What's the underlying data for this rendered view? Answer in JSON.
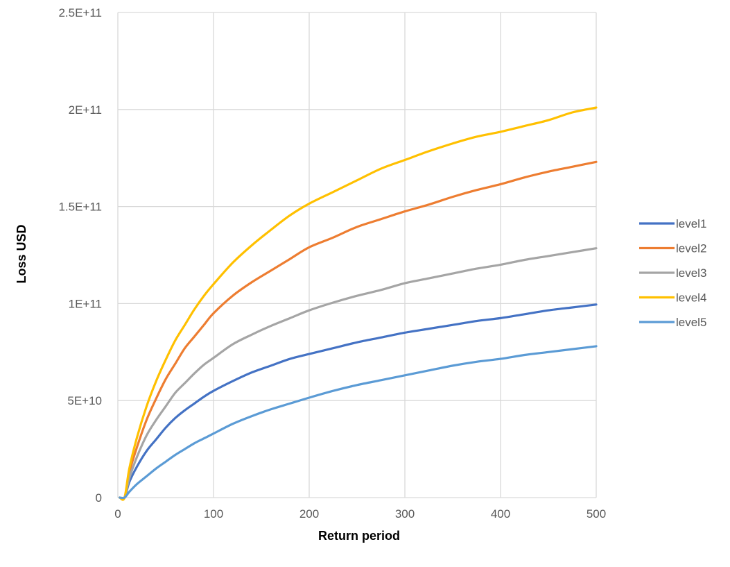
{
  "chart_data": {
    "type": "line",
    "title": "",
    "xlabel": "Return period",
    "ylabel": "Loss USD",
    "xlim": [
      0,
      500
    ],
    "ylim": [
      0,
      250000000000
    ],
    "x_ticks": [
      0,
      100,
      200,
      300,
      400,
      500
    ],
    "x_tick_labels": [
      "0",
      "100",
      "200",
      "300",
      "400",
      "500"
    ],
    "y_ticks": [
      0,
      50000000000,
      100000000000,
      150000000000,
      200000000000,
      250000000000
    ],
    "y_tick_labels": [
      "0",
      "5E+10",
      "1E+11",
      "1.5E+11",
      "2E+11",
      "2.5E+11"
    ],
    "grid": true,
    "legend_position": "right",
    "series": [
      {
        "name": "level1",
        "color": "#4472C4",
        "points": [
          [
            2,
            0
          ],
          [
            7,
            0
          ],
          [
            12,
            8000000000
          ],
          [
            20,
            16000000000
          ],
          [
            30,
            24000000000
          ],
          [
            40,
            30000000000
          ],
          [
            50,
            36000000000
          ],
          [
            60,
            41000000000
          ],
          [
            70,
            45000000000
          ],
          [
            80,
            48500000000
          ],
          [
            90,
            52000000000
          ],
          [
            100,
            55000000000
          ],
          [
            120,
            60000000000
          ],
          [
            140,
            64500000000
          ],
          [
            160,
            68000000000
          ],
          [
            180,
            71500000000
          ],
          [
            200,
            74000000000
          ],
          [
            225,
            77000000000
          ],
          [
            250,
            80000000000
          ],
          [
            275,
            82500000000
          ],
          [
            300,
            85000000000
          ],
          [
            325,
            87000000000
          ],
          [
            350,
            89000000000
          ],
          [
            375,
            91000000000
          ],
          [
            400,
            92500000000
          ],
          [
            425,
            94500000000
          ],
          [
            450,
            96500000000
          ],
          [
            475,
            98000000000
          ],
          [
            500,
            99500000000
          ]
        ]
      },
      {
        "name": "level2",
        "color": "#ED7D31",
        "points": [
          [
            2,
            0
          ],
          [
            7,
            0
          ],
          [
            12,
            13000000000
          ],
          [
            20,
            26000000000
          ],
          [
            30,
            40000000000
          ],
          [
            40,
            51000000000
          ],
          [
            50,
            61000000000
          ],
          [
            60,
            69000000000
          ],
          [
            70,
            77000000000
          ],
          [
            80,
            83000000000
          ],
          [
            90,
            89000000000
          ],
          [
            100,
            95000000000
          ],
          [
            120,
            104000000000
          ],
          [
            140,
            111000000000
          ],
          [
            160,
            117000000000
          ],
          [
            180,
            123000000000
          ],
          [
            200,
            129000000000
          ],
          [
            225,
            134000000000
          ],
          [
            250,
            139500000000
          ],
          [
            275,
            143500000000
          ],
          [
            300,
            147500000000
          ],
          [
            325,
            151000000000
          ],
          [
            350,
            155000000000
          ],
          [
            375,
            158500000000
          ],
          [
            400,
            161500000000
          ],
          [
            425,
            165000000000
          ],
          [
            450,
            168000000000
          ],
          [
            475,
            170500000000
          ],
          [
            500,
            173000000000
          ]
        ]
      },
      {
        "name": "level3",
        "color": "#A5A5A5",
        "points": [
          [
            2,
            0
          ],
          [
            7,
            0
          ],
          [
            12,
            10000000000
          ],
          [
            20,
            21000000000
          ],
          [
            30,
            32000000000
          ],
          [
            40,
            40000000000
          ],
          [
            50,
            47000000000
          ],
          [
            60,
            54000000000
          ],
          [
            70,
            59000000000
          ],
          [
            80,
            64000000000
          ],
          [
            90,
            68500000000
          ],
          [
            100,
            72000000000
          ],
          [
            120,
            79000000000
          ],
          [
            140,
            84000000000
          ],
          [
            160,
            88500000000
          ],
          [
            180,
            92500000000
          ],
          [
            200,
            96500000000
          ],
          [
            225,
            100500000000
          ],
          [
            250,
            104000000000
          ],
          [
            275,
            107000000000
          ],
          [
            300,
            110500000000
          ],
          [
            325,
            113000000000
          ],
          [
            350,
            115500000000
          ],
          [
            375,
            118000000000
          ],
          [
            400,
            120000000000
          ],
          [
            425,
            122500000000
          ],
          [
            450,
            124500000000
          ],
          [
            475,
            126500000000
          ],
          [
            500,
            128500000000
          ]
        ]
      },
      {
        "name": "level4",
        "color": "#FFC000",
        "points": [
          [
            2,
            0
          ],
          [
            7,
            0
          ],
          [
            12,
            15000000000
          ],
          [
            20,
            31000000000
          ],
          [
            30,
            47000000000
          ],
          [
            40,
            60000000000
          ],
          [
            50,
            71000000000
          ],
          [
            60,
            81000000000
          ],
          [
            70,
            89000000000
          ],
          [
            80,
            97000000000
          ],
          [
            90,
            104000000000
          ],
          [
            100,
            110000000000
          ],
          [
            120,
            121000000000
          ],
          [
            140,
            130000000000
          ],
          [
            160,
            138000000000
          ],
          [
            180,
            145500000000
          ],
          [
            200,
            151500000000
          ],
          [
            225,
            157500000000
          ],
          [
            250,
            163500000000
          ],
          [
            275,
            169500000000
          ],
          [
            300,
            174000000000
          ],
          [
            325,
            178500000000
          ],
          [
            350,
            182500000000
          ],
          [
            375,
            186000000000
          ],
          [
            400,
            188500000000
          ],
          [
            425,
            191500000000
          ],
          [
            450,
            194500000000
          ],
          [
            475,
            198500000000
          ],
          [
            500,
            201000000000
          ]
        ]
      },
      {
        "name": "level5",
        "color": "#5B9BD5",
        "points": [
          [
            2,
            0
          ],
          [
            7,
            0
          ],
          [
            12,
            3000000000
          ],
          [
            20,
            7000000000
          ],
          [
            30,
            11000000000
          ],
          [
            40,
            15000000000
          ],
          [
            50,
            18500000000
          ],
          [
            60,
            22000000000
          ],
          [
            70,
            25000000000
          ],
          [
            80,
            28000000000
          ],
          [
            90,
            30500000000
          ],
          [
            100,
            33000000000
          ],
          [
            120,
            38000000000
          ],
          [
            140,
            42000000000
          ],
          [
            160,
            45500000000
          ],
          [
            180,
            48500000000
          ],
          [
            200,
            51500000000
          ],
          [
            225,
            55000000000
          ],
          [
            250,
            58000000000
          ],
          [
            275,
            60500000000
          ],
          [
            300,
            63000000000
          ],
          [
            325,
            65500000000
          ],
          [
            350,
            68000000000
          ],
          [
            375,
            70000000000
          ],
          [
            400,
            71500000000
          ],
          [
            425,
            73500000000
          ],
          [
            450,
            75000000000
          ],
          [
            475,
            76500000000
          ],
          [
            500,
            78000000000
          ]
        ]
      }
    ]
  }
}
